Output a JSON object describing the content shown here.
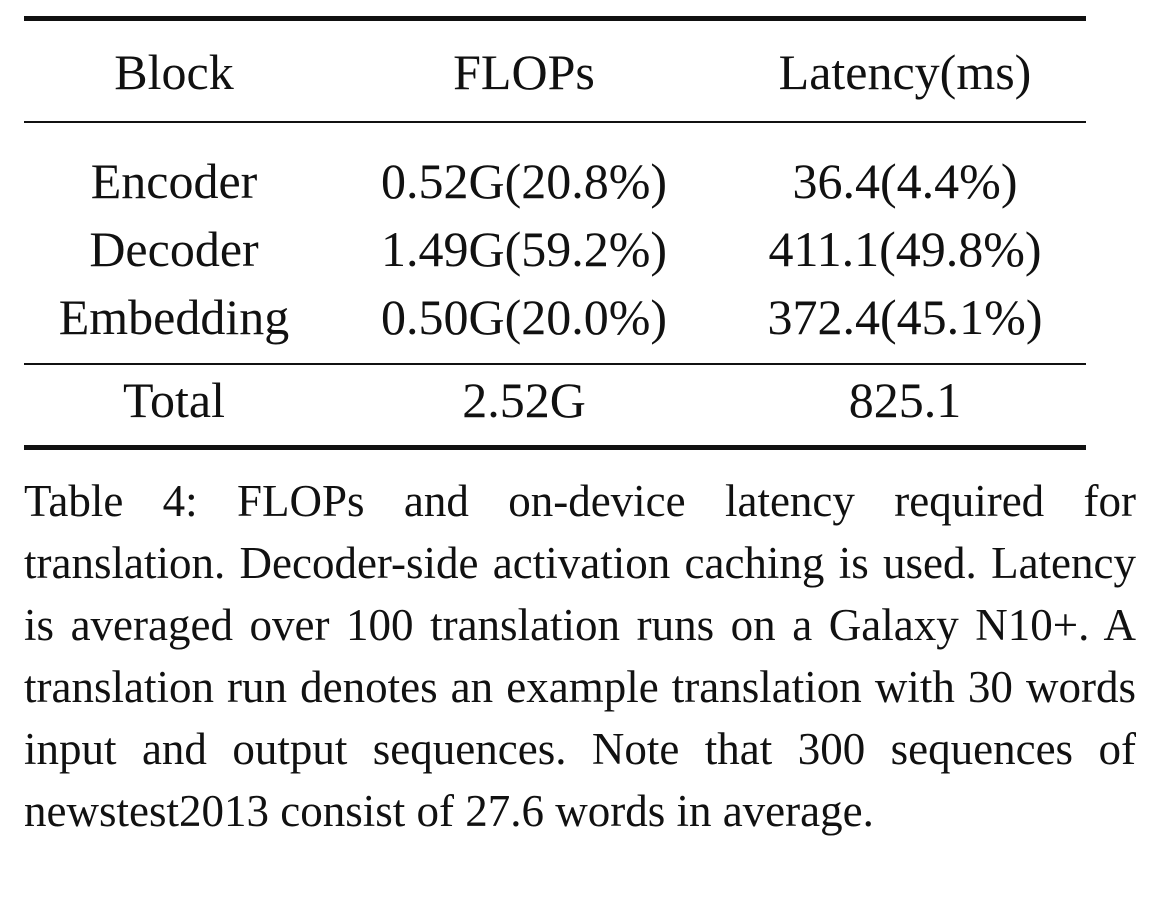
{
  "table": {
    "headers": [
      "Block",
      "FLOPs",
      "Latency(ms)"
    ],
    "rows": [
      [
        "Encoder",
        "0.52G(20.8%)",
        "36.4(4.4%)"
      ],
      [
        "Decoder",
        "1.49G(59.2%)",
        "411.1(49.8%)"
      ],
      [
        "Embedding",
        "0.50G(20.0%)",
        "372.4(45.1%)"
      ]
    ],
    "total": [
      "Total",
      "2.52G",
      "825.1"
    ]
  },
  "caption": "Table 4: FLOPs and on-device latency required for translation. Decoder-side activation caching is used. Latency is averaged over 100 translation runs on a Galaxy N10+. A translation run denotes an example translation with 30 words input and output sequences. Note that 300 sequences of newstest2013 consist of 27.6 words in average."
}
